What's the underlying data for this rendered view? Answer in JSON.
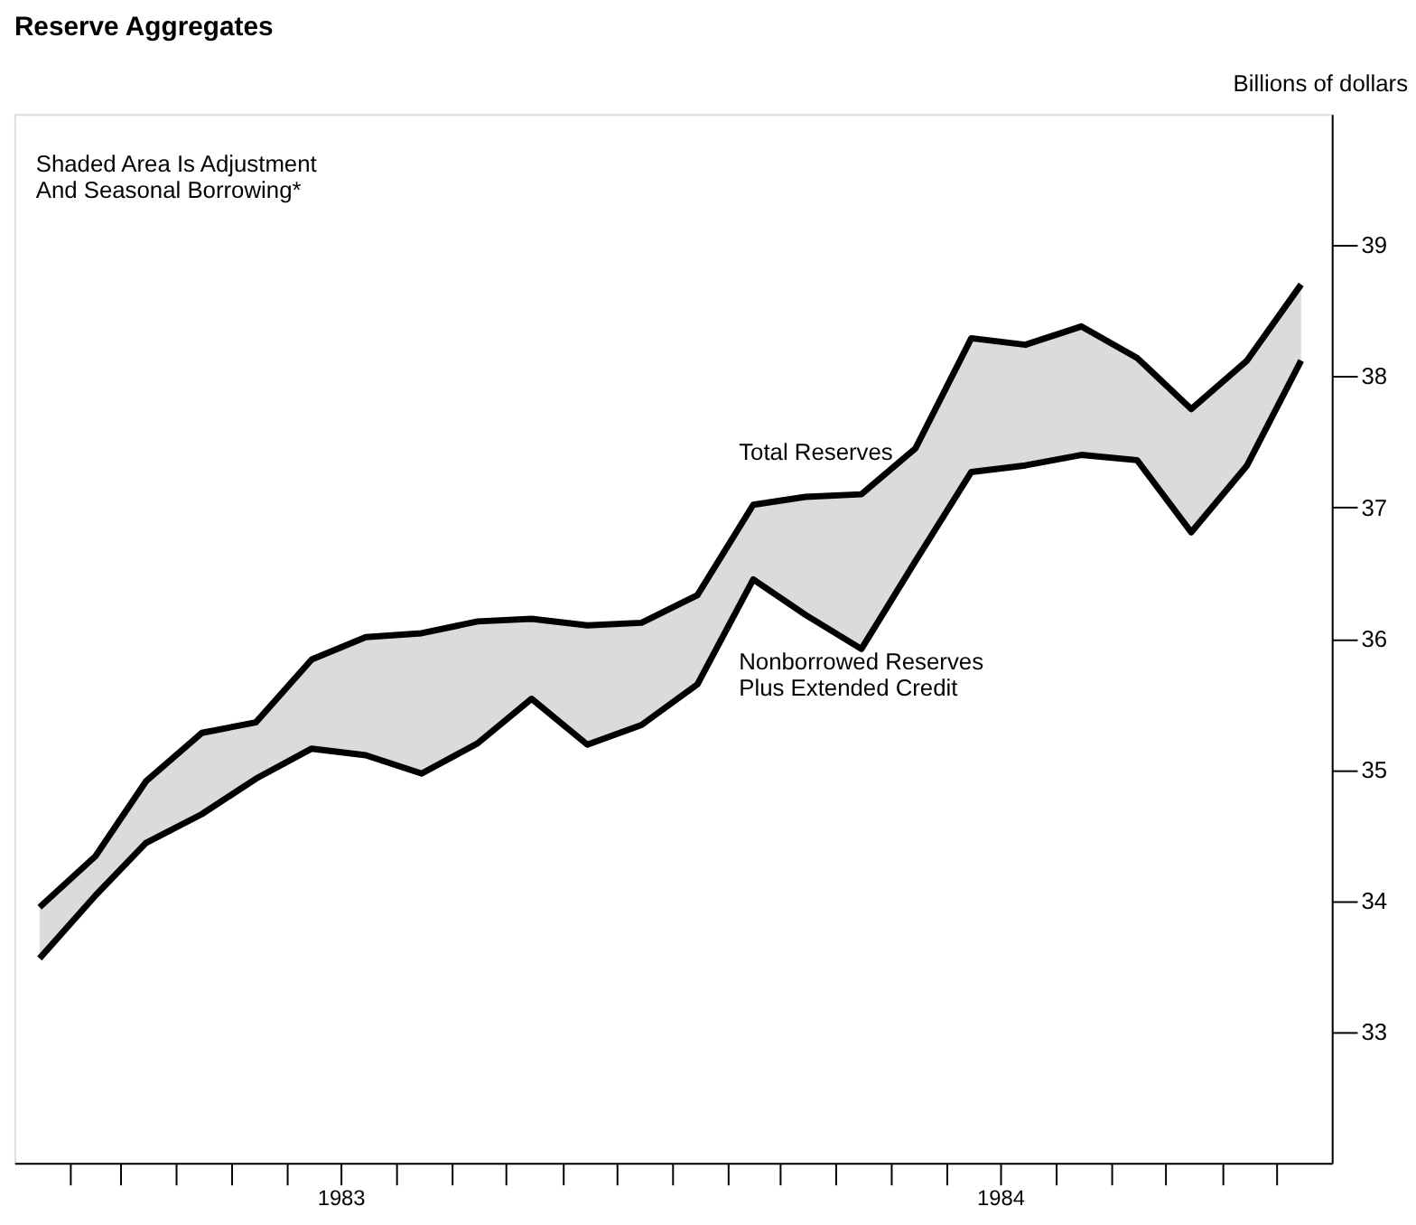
{
  "chart_data": {
    "type": "line",
    "title": "Reserve Aggregates",
    "ylabel": "Billions of dollars",
    "annotations": [
      "Shaded Area Is Adjustment\nAnd Seasonal Borrowing*"
    ],
    "x": [
      "1983-01-15",
      "1983-02-15",
      "1983-03-15",
      "1983-04-15",
      "1983-05-15",
      "1983-06-15",
      "1983-07-15",
      "1983-08-15",
      "1983-09-15",
      "1983-10-15",
      "1983-11-15",
      "1983-12-15",
      "1984-01-15",
      "1984-02-15",
      "1984-03-15",
      "1984-04-15",
      "1984-05-15",
      "1984-06-15",
      "1984-07-15",
      "1984-08-15",
      "1984-09-15",
      "1984-10-15",
      "1984-11-15",
      "1984-12-15"
    ],
    "series": [
      {
        "name": "Total Reserves",
        "color": "#000000",
        "values": [
          33.95,
          34.34,
          34.91,
          35.28,
          35.36,
          35.84,
          36.01,
          36.04,
          36.13,
          36.15,
          36.1,
          36.12,
          36.33,
          37.02,
          37.08,
          37.1,
          37.45,
          38.29,
          38.24,
          38.38,
          38.14,
          37.75,
          38.12,
          38.7
        ],
        "lower": [
          33.56,
          34.04,
          34.44,
          34.66,
          34.93,
          35.16,
          35.11,
          34.97,
          35.2,
          35.54,
          35.19,
          35.34,
          35.65,
          36.45,
          36.18,
          35.92,
          36.59,
          37.27,
          37.32,
          37.4,
          37.36,
          36.81,
          37.32,
          38.12
        ],
        "upper": [
          33.95,
          34.34,
          34.91,
          35.28,
          35.36,
          35.84,
          36.01,
          36.04,
          36.13,
          36.15,
          36.1,
          36.12,
          36.33,
          37.02,
          37.08,
          37.1,
          37.45,
          38.29,
          38.24,
          38.38,
          38.14,
          37.75,
          38.12,
          38.7
        ]
      },
      {
        "name": "Nonborrowed Reserves\nPlus Extended Credit",
        "color": "#000000",
        "values": [
          33.56,
          34.04,
          34.44,
          34.66,
          34.93,
          35.16,
          35.11,
          34.97,
          35.2,
          35.54,
          35.19,
          35.34,
          35.65,
          36.45,
          36.18,
          35.92,
          36.59,
          37.27,
          37.32,
          37.4,
          37.36,
          36.81,
          37.32,
          38.12
        ]
      }
    ],
    "xlim": [
      "1983-01-01",
      "1985-01-01"
    ],
    "xticks": [
      {
        "value": "1983-02-01",
        "label": null
      },
      {
        "value": "1983-03-01",
        "label": null
      },
      {
        "value": "1983-04-01",
        "label": null
      },
      {
        "value": "1983-05-01",
        "label": null
      },
      {
        "value": "1983-06-01",
        "label": null
      },
      {
        "value": "1983-07-01",
        "label": "1983"
      },
      {
        "value": "1983-08-01",
        "label": null
      },
      {
        "value": "1983-09-01",
        "label": null
      },
      {
        "value": "1983-10-01",
        "label": null
      },
      {
        "value": "1983-11-01",
        "label": null
      },
      {
        "value": "1983-12-01",
        "label": null
      },
      {
        "value": "1984-01-01",
        "label": null
      },
      {
        "value": "1984-02-01",
        "label": null
      },
      {
        "value": "1984-03-01",
        "label": null
      },
      {
        "value": "1984-04-01",
        "label": null
      },
      {
        "value": "1984-05-01",
        "label": null
      },
      {
        "value": "1984-06-01",
        "label": null
      },
      {
        "value": "1984-07-01",
        "label": "1984"
      },
      {
        "value": "1984-08-01",
        "label": null
      },
      {
        "value": "1984-09-01",
        "label": null
      },
      {
        "value": "1984-10-01",
        "label": null
      },
      {
        "value": "1984-11-01",
        "label": null
      },
      {
        "value": "1984-12-01",
        "label": null
      }
    ],
    "ylim": [
      32,
      40
    ],
    "yticks": [
      33,
      34,
      35,
      36,
      37,
      38,
      39
    ],
    "grid": false,
    "legend": false,
    "marker": "none",
    "line_style": "solid"
  }
}
